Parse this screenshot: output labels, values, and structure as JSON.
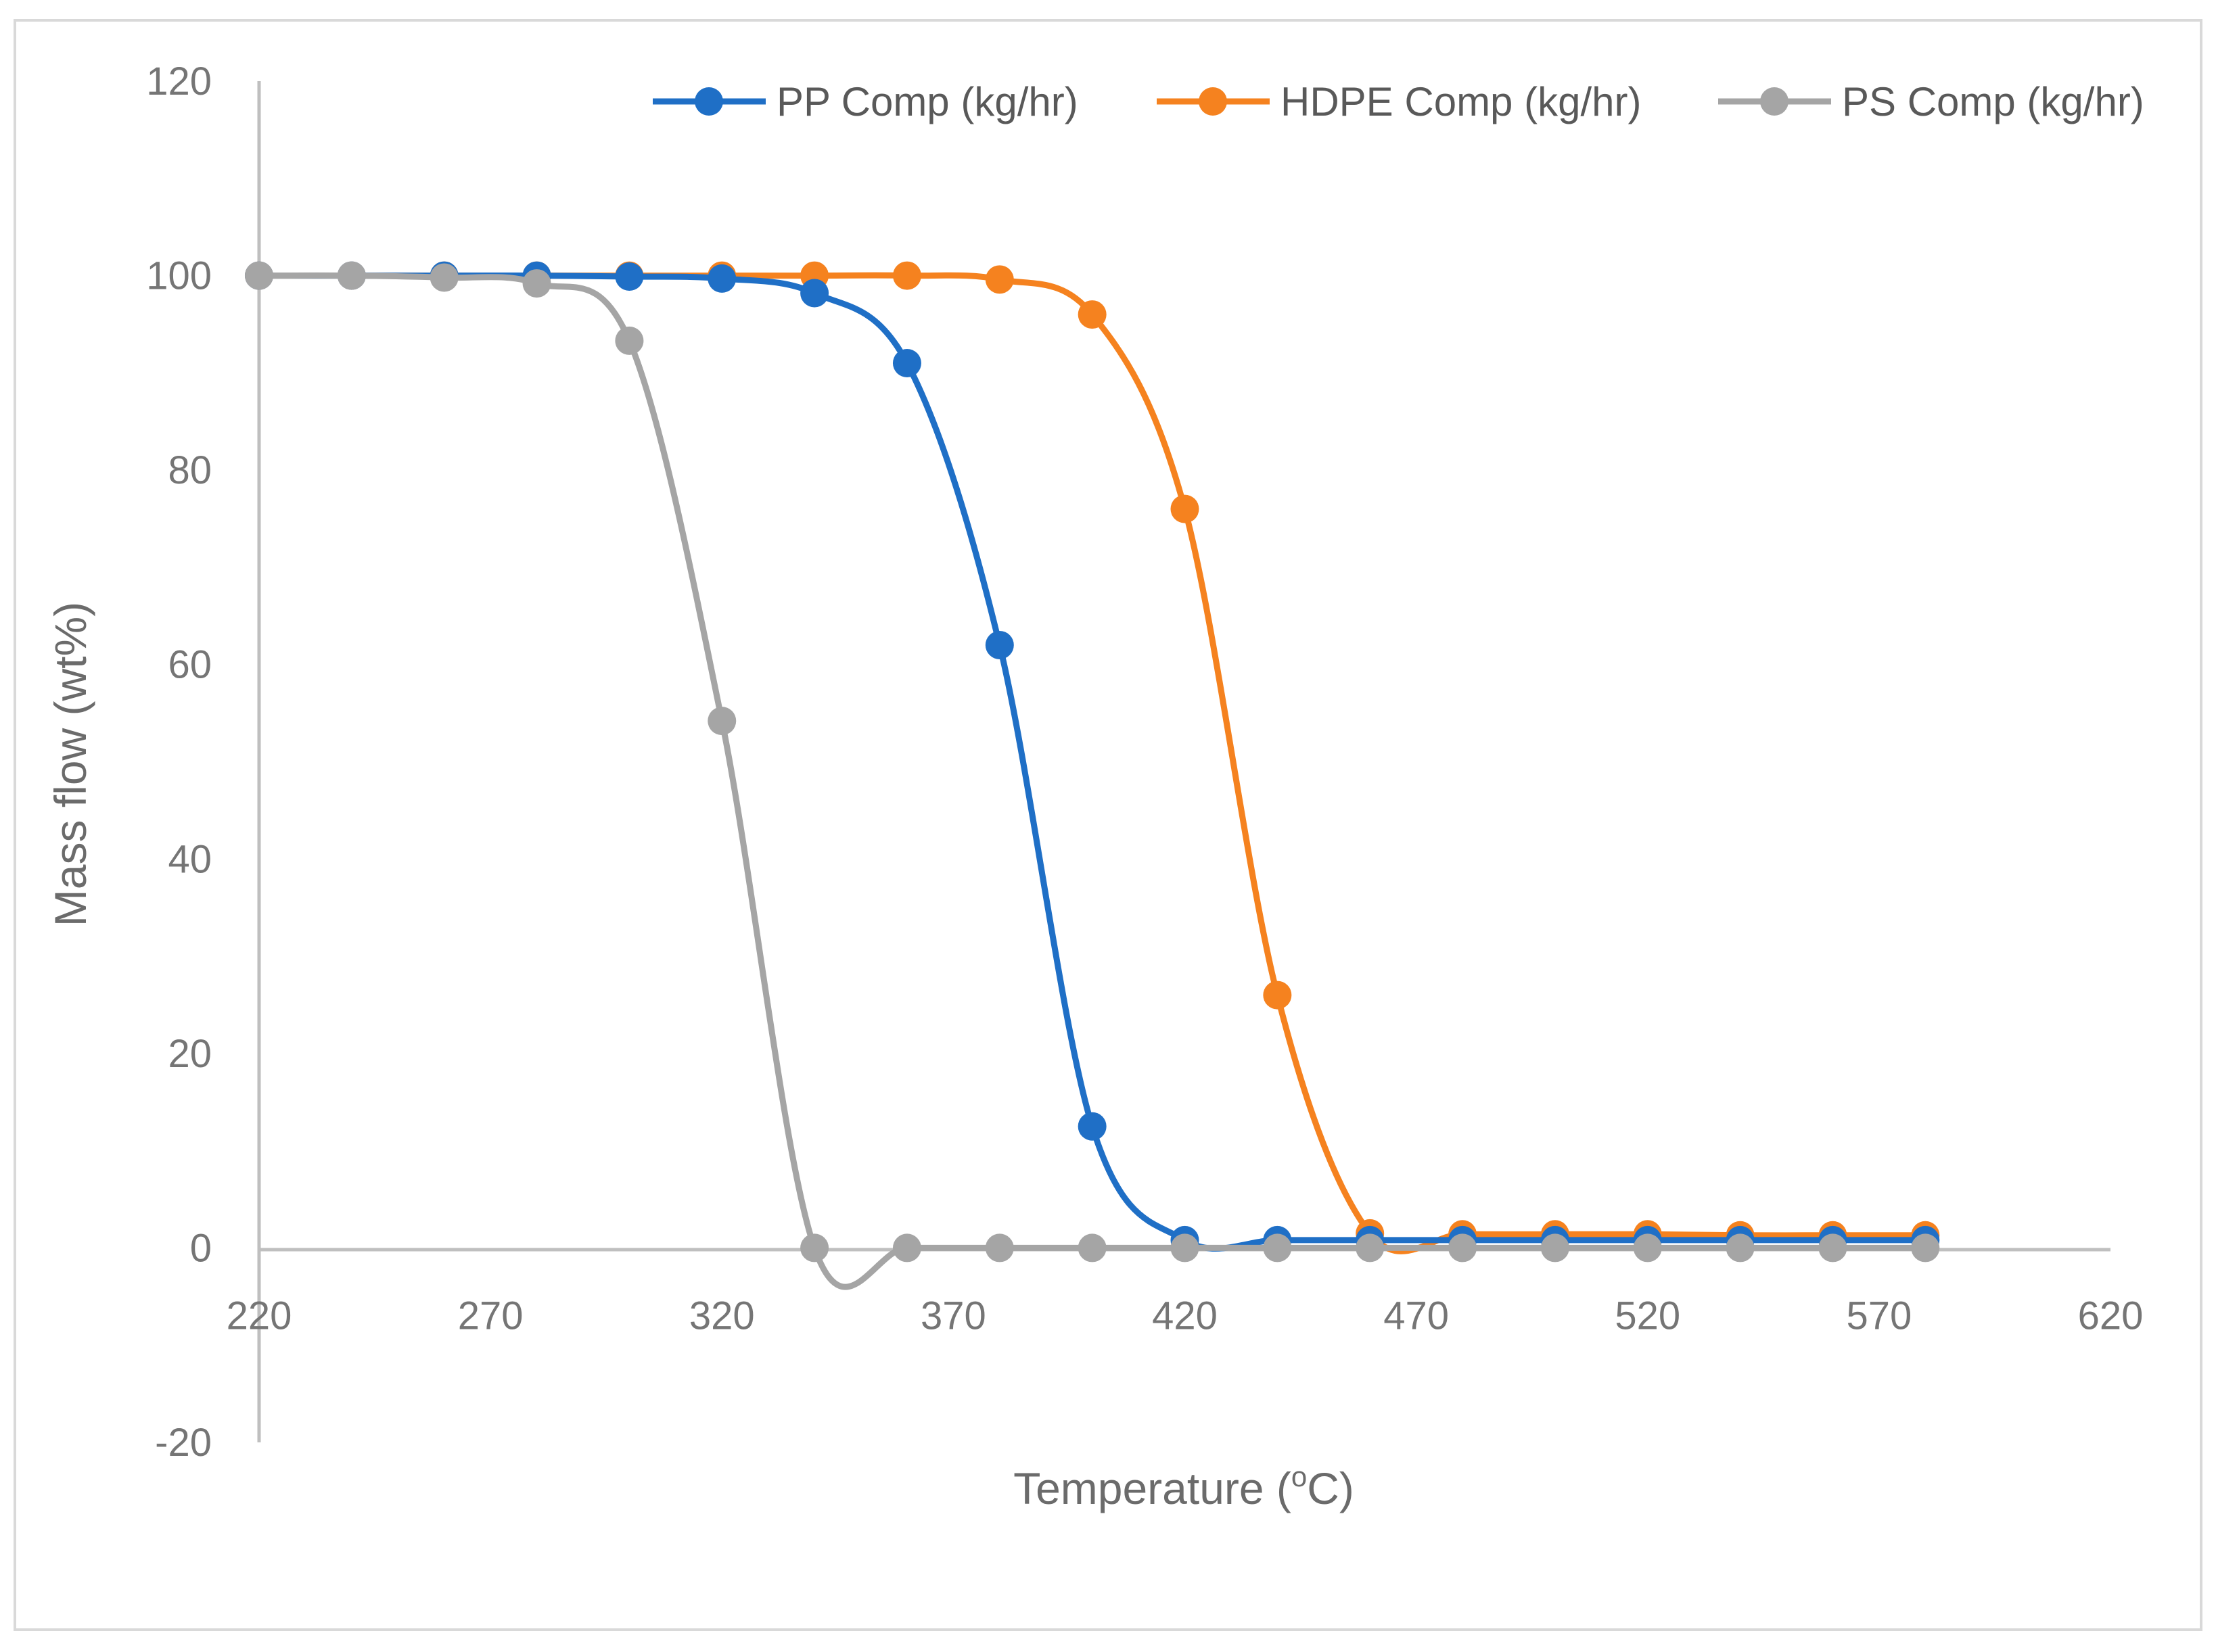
{
  "chart_data": {
    "type": "line",
    "title": "",
    "xlabel": "Temperature (",
    "xlabel_sup": "o",
    "xlabel_suffix": "C)",
    "ylabel": "Mass flow (wt%)",
    "xlim": [
      220,
      620
    ],
    "ylim": [
      -20,
      120
    ],
    "x_ticks": [
      220,
      270,
      320,
      370,
      420,
      470,
      520,
      570,
      620
    ],
    "y_ticks": [
      -20,
      0,
      20,
      40,
      60,
      80,
      100,
      120
    ],
    "grid": false,
    "legend_position": "top-right",
    "smooth": true,
    "x": [
      220,
      240,
      260,
      280,
      300,
      320,
      340,
      360,
      380,
      400,
      420,
      440,
      460,
      480,
      500,
      520,
      540,
      560,
      580
    ],
    "series": [
      {
        "name": "PP Comp (kg/hr)",
        "color": "#1f6fc6",
        "values": [
          100,
          100,
          100,
          100,
          99.9,
          99.7,
          98.2,
          91,
          62,
          12.5,
          0.8,
          0.8,
          0.8,
          0.8,
          0.8,
          0.8,
          0.8,
          0.8,
          0.8
        ]
      },
      {
        "name": "HDPE Comp (kg/hr)",
        "color": "#f5821f",
        "values": [
          100,
          100,
          100,
          100,
          100,
          100,
          100,
          100,
          99.6,
          96,
          76,
          26,
          1.5,
          1.4,
          1.4,
          1.4,
          1.3,
          1.3,
          1.3
        ]
      },
      {
        "name": "PS Comp (kg/hr)",
        "color": "#a5a5a5",
        "values": [
          100,
          100,
          99.8,
          99.2,
          93.3,
          54.2,
          0,
          0,
          0,
          0,
          0,
          0,
          0,
          0,
          0,
          0,
          0,
          0,
          0
        ]
      }
    ]
  }
}
